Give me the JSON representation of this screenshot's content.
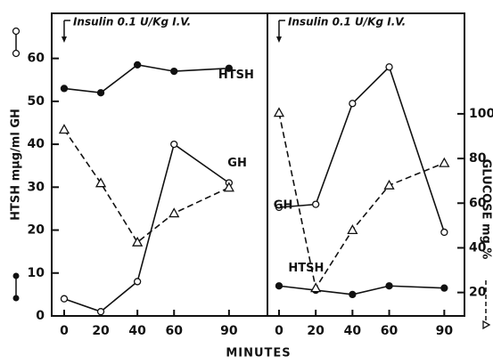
{
  "chart_data": {
    "type": "line",
    "xlabel": "MINUTES",
    "ylabel": "HTSH mμg/ml GH",
    "y2label": "GLUCOSE mg %",
    "xticks": [
      0,
      20,
      40,
      60,
      90
    ],
    "ylim": [
      0,
      70.5
    ],
    "yticks": [
      0,
      10,
      20,
      30,
      40,
      50,
      60
    ],
    "y2lim": [
      9.5,
      145
    ],
    "y2ticks": [
      20,
      40,
      60,
      80,
      100
    ],
    "panels": [
      {
        "annotation": "Insulin 0.1 U/Kg I.V.",
        "xlim": [
          -6.8,
          111
        ],
        "x": [
          0,
          20,
          40,
          60,
          90
        ],
        "series": [
          {
            "name": "HTSH",
            "color": "#111111",
            "marker": "filled-circle",
            "dash": false,
            "values": [
              53,
              52,
              58.5,
              57,
              57.7
            ]
          },
          {
            "name": "GH",
            "color": "#111111",
            "marker": "open-circle",
            "dash": false,
            "values": [
              4,
              1,
              8,
              40,
              31
            ]
          },
          {
            "color": "#111111",
            "marker": "open-triangle",
            "dash": true,
            "axis": "y2",
            "values": [
              93,
              69,
              42.5,
              55.5,
              67
            ]
          }
        ]
      },
      {
        "annotation": "Insulin 0.1 U/Kg I.V.",
        "xlim": [
          -6.3,
          101
        ],
        "x": [
          0,
          20,
          40,
          60,
          90
        ],
        "series": [
          {
            "name": "HTSH",
            "color": "#111111",
            "marker": "filled-circle",
            "dash": false,
            "values": [
              7,
              6,
              5,
              7,
              6.5
            ]
          },
          {
            "name": "GH",
            "color": "#111111",
            "marker": "open-circle",
            "dash": false,
            "values": [
              25.3,
              26,
              49.5,
              58,
              19.5
            ]
          },
          {
            "color": "#111111",
            "marker": "open-triangle",
            "dash": true,
            "axis": "y2",
            "values": [
              100.5,
              22,
              48,
              68,
              78
            ]
          }
        ]
      }
    ]
  }
}
